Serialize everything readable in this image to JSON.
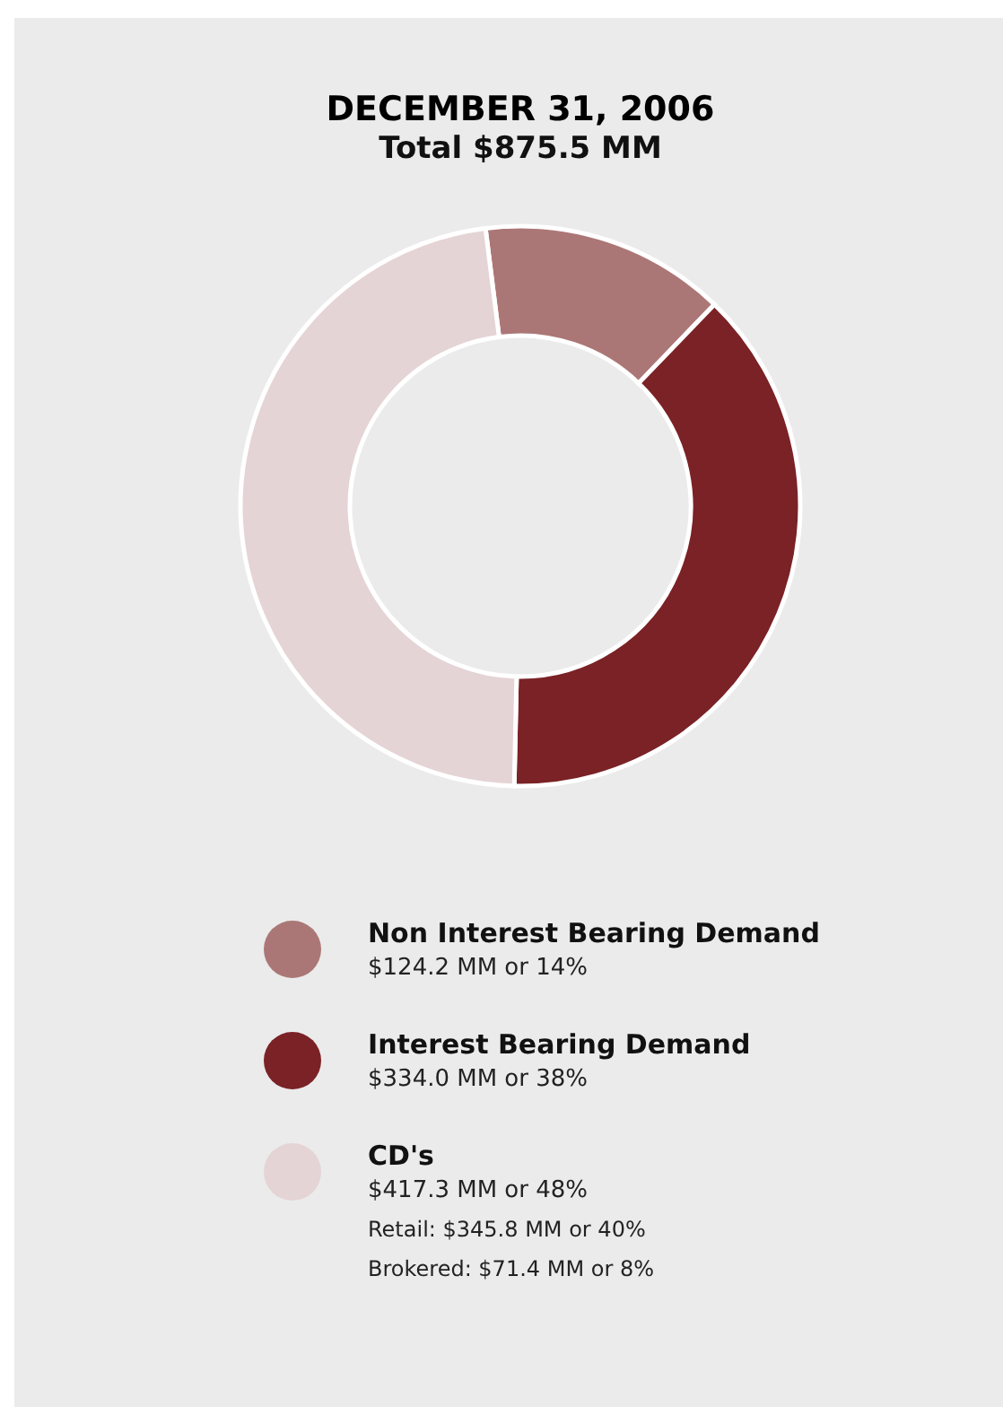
{
  "chart_data": {
    "type": "donut",
    "title": "DECEMBER 31, 2006",
    "subtitle": "Total $875.5 MM",
    "categories": [
      "Non Interest Bearing Demand",
      "Interest Bearing Demand",
      "CD's"
    ],
    "values": [
      124.2,
      334.0,
      417.3
    ],
    "colors": [
      "#ab7776",
      "#7a2226",
      "#e5d4d5"
    ],
    "value_labels": [
      "$124.2 MM or 14%",
      "$334.0 MM or 38%",
      "$417.3 MM or 48%"
    ],
    "annotations": [
      "Retail: $345.8 MM or 40%",
      "Brokered: $71.4 MM or 8%"
    ],
    "legend": "bottom"
  }
}
